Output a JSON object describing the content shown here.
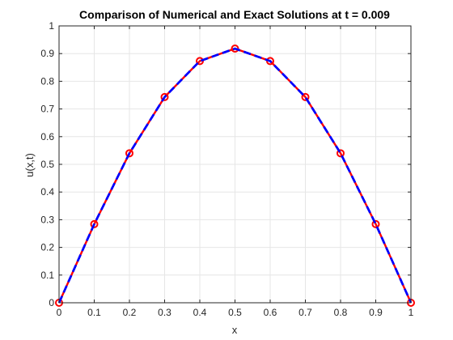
{
  "chart_data": {
    "type": "line",
    "title": "Comparison of Numerical and Exact Solutions at t = 0.009",
    "xlabel": "x",
    "ylabel": "u(x,t)",
    "xlim": [
      0,
      1
    ],
    "ylim": [
      0,
      1
    ],
    "grid": true,
    "x_ticks": [
      "0",
      "0.1",
      "0.2",
      "0.3",
      "0.4",
      "0.5",
      "0.6",
      "0.7",
      "0.8",
      "0.9",
      "1"
    ],
    "y_ticks": [
      "0",
      "0.1",
      "0.2",
      "0.3",
      "0.4",
      "0.5",
      "0.6",
      "0.7",
      "0.8",
      "0.9",
      "1"
    ],
    "x": [
      0,
      0.1,
      0.2,
      0.3,
      0.4,
      0.5,
      0.6,
      0.7,
      0.8,
      0.9,
      1.0
    ],
    "series": [
      {
        "values": [
          0,
          0.284,
          0.54,
          0.743,
          0.873,
          0.918,
          0.873,
          0.743,
          0.54,
          0.284,
          0
        ],
        "color": "#ff0000",
        "style": "solid",
        "marker": "circle"
      },
      {
        "values": [
          0,
          0.284,
          0.54,
          0.743,
          0.873,
          0.918,
          0.873,
          0.743,
          0.54,
          0.284,
          0
        ],
        "color": "#0000ff",
        "style": "dashed",
        "marker": "none"
      }
    ]
  }
}
